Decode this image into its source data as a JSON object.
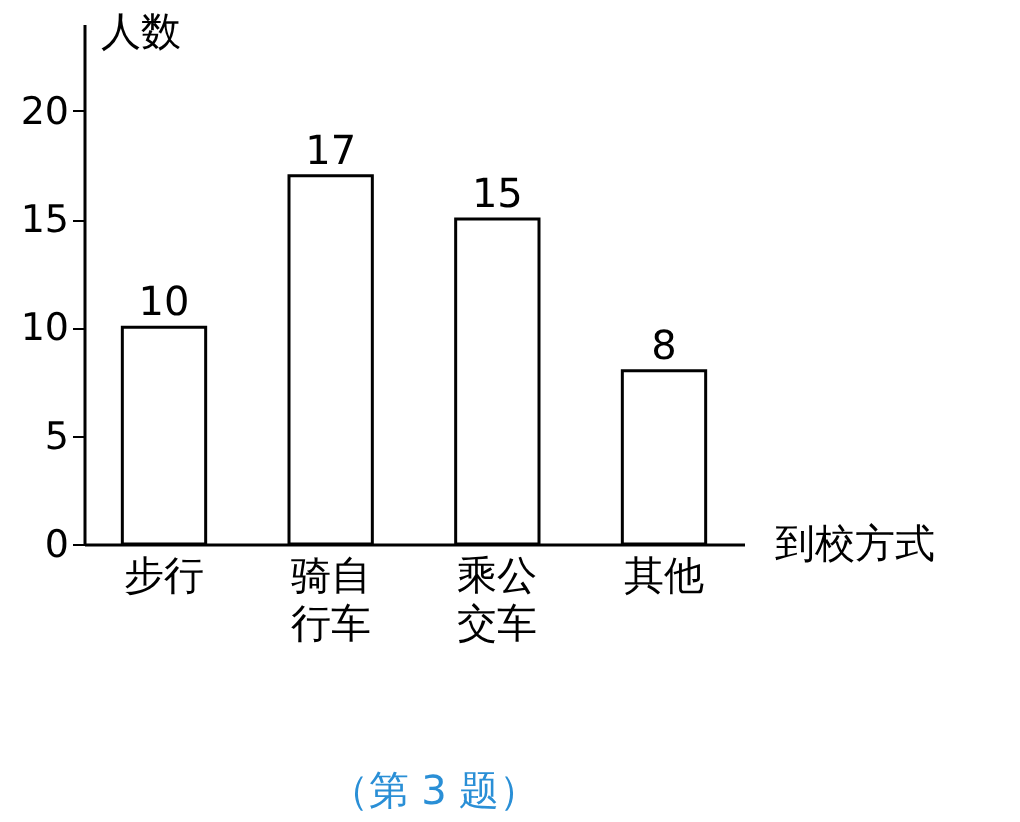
{
  "chart_data": {
    "type": "bar",
    "categories": [
      "步行",
      "骑自行车",
      "乘公交车",
      "其他"
    ],
    "series": [
      {
        "color": "#ffffff",
        "values": [
          10,
          17,
          15,
          8
        ]
      }
    ],
    "ylabel": "人数",
    "xlabel": "到校方式",
    "ylim": [
      0,
      24
    ],
    "yticks": [
      0,
      5,
      10,
      15,
      20
    ],
    "data_labels": true,
    "grid": false,
    "annotations": [
      "（第 3 题）"
    ]
  }
}
